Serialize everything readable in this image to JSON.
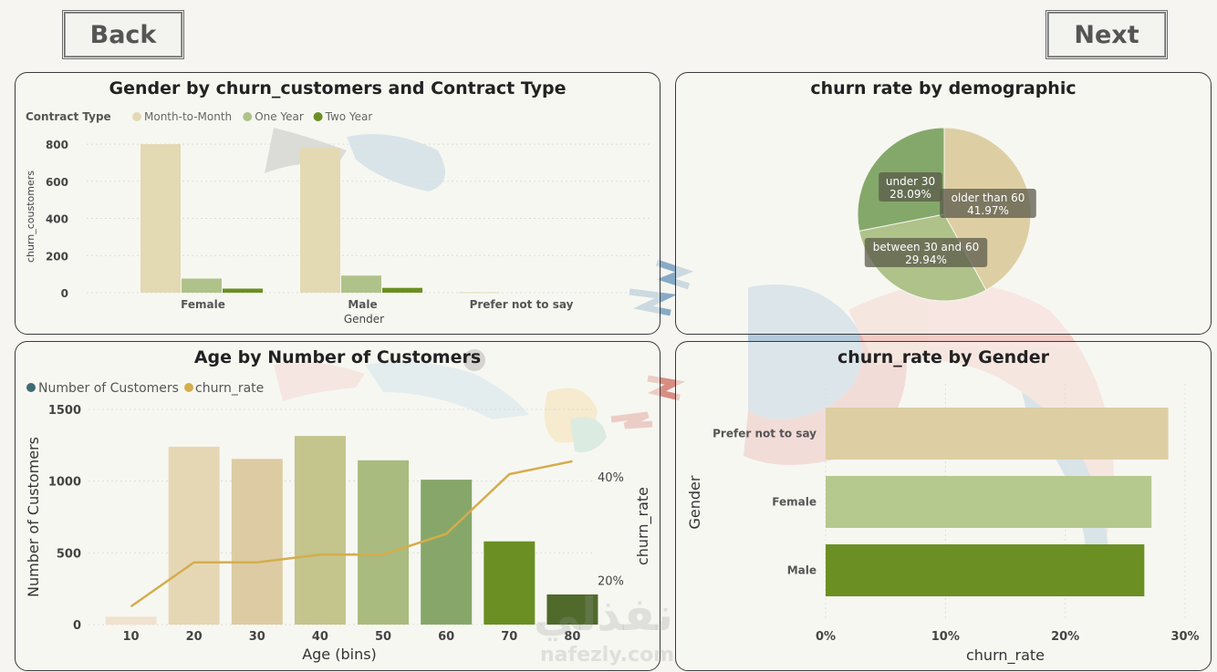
{
  "nav": {
    "back_label": "Back",
    "next_label": "Next"
  },
  "colors": {
    "month_to_month": "#e3d9b3",
    "one_year": "#aec289",
    "two_year": "#6b8f23",
    "line": "#d4ad4d",
    "legend_customers": "#3f6a73",
    "pie_older": "#ddcfa3",
    "pie_between": "#aec289",
    "pie_under": "#84a86a"
  },
  "watermark": {
    "arabic": "نفذلي",
    "latin": "nafezly.com"
  },
  "chart_data": [
    {
      "id": "gender-contract",
      "type": "bar",
      "title": "Gender by churn_customers and Contract Type",
      "legend_title": "Contract Type",
      "legend_placement": "top-left",
      "xlabel": "Gender",
      "ylabel": "churn_coustomers",
      "categories": [
        "Female",
        "Male",
        "Prefer not to say"
      ],
      "yticks": [
        "800",
        "600",
        "400",
        "200",
        "0"
      ],
      "ylim": [
        0,
        820
      ],
      "series": [
        {
          "name": "Month-to-Month",
          "values": [
            800,
            780,
            3
          ]
        },
        {
          "name": "One Year",
          "values": [
            76,
            92,
            0
          ]
        },
        {
          "name": "Two Year",
          "values": [
            22,
            26,
            0
          ]
        }
      ]
    },
    {
      "id": "churn-demographic",
      "type": "pie",
      "title": "churn rate by demographic",
      "slices": [
        {
          "label": "older than 60",
          "value": 41.97,
          "pct_label": "41.97%"
        },
        {
          "label": "between 30 and 60",
          "value": 29.94,
          "pct_label": "29.94%"
        },
        {
          "label": "under 30",
          "value": 28.09,
          "pct_label": "28.09%"
        }
      ]
    },
    {
      "id": "age-customers",
      "type": "bar",
      "title": "Age by Number of Customers",
      "legend_placement": "top-left",
      "xlabel": "Age (bins)",
      "ylabel": "Number of Customers",
      "y2label": "churn_rate",
      "categories": [
        "10",
        "20",
        "30",
        "40",
        "50",
        "60",
        "70",
        "80"
      ],
      "yticks": [
        "1500",
        "1000",
        "500",
        "0"
      ],
      "ylim": [
        0,
        1500
      ],
      "y2ticks": [
        "40%",
        "20%"
      ],
      "y2lim": [
        0.115,
        0.53
      ],
      "bar_colors": [
        "#f0e2cd",
        "#e6d7b4",
        "#ddcca3",
        "#c4c48d",
        "#a9bb7e",
        "#86a769",
        "#6b8f23",
        "#4f6a2b"
      ],
      "series": [
        {
          "name": "Number of Customers",
          "kind": "bar",
          "values": [
            55,
            1240,
            1155,
            1315,
            1145,
            1010,
            580,
            210
          ]
        },
        {
          "name": "churn_rate",
          "kind": "line",
          "values": [
            0.15,
            0.235,
            0.235,
            0.25,
            0.25,
            0.29,
            0.405,
            0.43
          ]
        }
      ]
    },
    {
      "id": "churn-gender",
      "type": "bar",
      "orientation": "horizontal",
      "title": "churn_rate by Gender",
      "xlabel": "churn_rate",
      "ylabel": "Gender",
      "categories": [
        "Prefer not to say",
        "Female",
        "Male"
      ],
      "xticks": [
        "0%",
        "10%",
        "20%",
        "30%"
      ],
      "xlim": [
        0,
        0.3
      ],
      "bar_colors": [
        "#ddcfa3",
        "#b5c98f",
        "#6b8f23"
      ],
      "values": [
        0.286,
        0.272,
        0.266
      ]
    }
  ]
}
